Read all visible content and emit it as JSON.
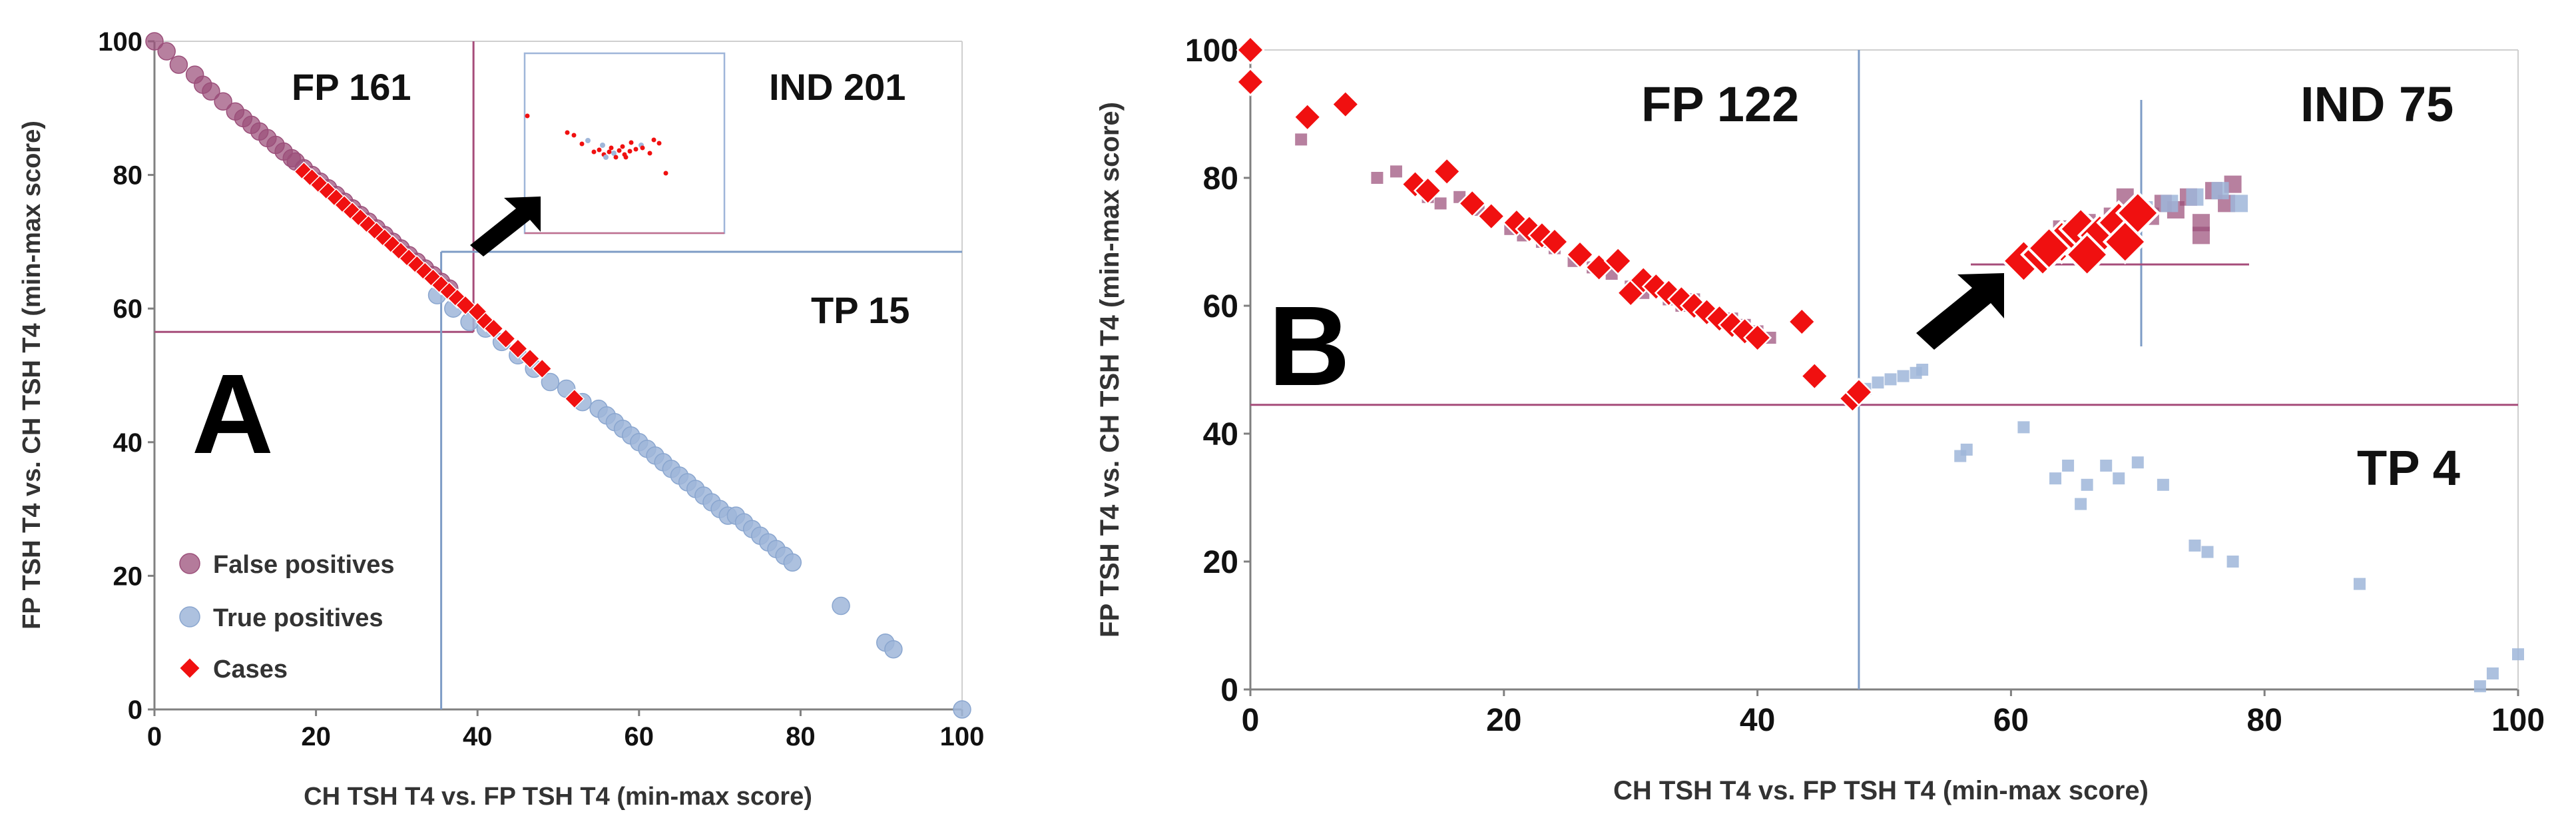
{
  "colors": {
    "fp": "#9b4f7a",
    "tp": "#9fb6d9",
    "case": "#f01010",
    "fp_line": "#a64d7a",
    "tp_line": "#7e9cc6",
    "axis": "#808080",
    "inset_box": "#9fb6d9",
    "inset_box_b": "#c07090"
  },
  "panels": {
    "a": {
      "label": "A",
      "fp_text": "FP 161",
      "ind_text": "IND 201",
      "tp_text": "TP  15"
    },
    "b": {
      "label": "B",
      "fp_text": "FP  122",
      "ind_text": "IND 75",
      "tp_text": "TP  4"
    }
  },
  "legend": {
    "fp": "False positives",
    "tp": "True positives",
    "cases": "Cases"
  },
  "chart_data": [
    {
      "type": "scatter",
      "title": "",
      "xlabel": "CH TSH T4 vs. FP TSH T4 (min-max score)",
      "ylabel": "FP TSH T4 vs. CH TSH T4 (min-max score)",
      "xlim": [
        0,
        100
      ],
      "ylim": [
        0,
        100
      ],
      "xticks": [
        0,
        20,
        40,
        60,
        80,
        100
      ],
      "yticks": [
        0,
        20,
        40,
        60,
        80,
        100
      ],
      "thresholds": {
        "fp_x": 39.5,
        "fp_y": 56.5,
        "tp_x": 35.5,
        "tp_y": 68.5
      },
      "series": [
        {
          "name": "False positives",
          "marker": "circle",
          "x": [
            0,
            1.5,
            3,
            5,
            6,
            7,
            8.5,
            10,
            11,
            12,
            13,
            14,
            15,
            16,
            17,
            17.5,
            18.5,
            19.5,
            20.5,
            21.5,
            22.5,
            23.5,
            24.5,
            25.5,
            26.5,
            27.5,
            28.5,
            29.5,
            30.5,
            31.5,
            32.5,
            33.5,
            34.5,
            35.5,
            36.5
          ],
          "y": [
            100,
            98.5,
            96.5,
            95,
            93.5,
            92.5,
            91,
            89.5,
            88.5,
            87.5,
            86.5,
            85.5,
            84.5,
            83.5,
            82.5,
            82,
            81,
            80,
            79,
            78,
            77,
            76,
            75,
            74,
            73,
            72,
            71,
            70,
            69,
            68,
            67,
            66,
            65,
            64,
            63
          ]
        },
        {
          "name": "True positives",
          "marker": "circle",
          "x": [
            35,
            37,
            39,
            41,
            43,
            45,
            47,
            49,
            51,
            53,
            55,
            56,
            57,
            58,
            59,
            60,
            61,
            62,
            63,
            64,
            65,
            66,
            67,
            68,
            69,
            70,
            71,
            72,
            73,
            74,
            75,
            76,
            77,
            78,
            79,
            85,
            90.5,
            91.5,
            100
          ],
          "y": [
            62,
            60,
            58,
            57,
            55,
            53,
            51,
            49,
            48,
            46,
            45,
            44,
            43,
            42,
            41,
            40,
            39,
            38,
            37,
            36,
            35,
            34,
            33,
            32,
            31,
            30,
            29,
            29,
            28,
            27,
            26,
            25,
            24,
            23,
            22,
            15.5,
            10,
            9,
            0
          ]
        },
        {
          "name": "Cases",
          "marker": "diamond",
          "x": [
            18.5,
            19.5,
            20.5,
            21.5,
            22.5,
            23.5,
            24.5,
            25.5,
            26.5,
            27.5,
            28.5,
            29.5,
            30.5,
            31.5,
            32.5,
            33.5,
            34.5,
            35.5,
            36.5,
            37.5,
            38.5,
            40,
            41,
            42,
            43.5,
            45,
            46.5,
            48,
            52
          ],
          "y": [
            80.5,
            79.5,
            78.5,
            77.5,
            76.5,
            75.5,
            74.5,
            73.5,
            72.5,
            71.5,
            70.5,
            69.5,
            68.5,
            67.5,
            66.5,
            65.5,
            64.5,
            63.5,
            62.5,
            61.5,
            60.5,
            59.5,
            58,
            57,
            55.5,
            54,
            52.5,
            51,
            46.5
          ]
        }
      ]
    },
    {
      "type": "scatter",
      "title": "",
      "xlabel": "CH TSH T4 vs. FP TSH T4 (min-max score)",
      "ylabel": "FP TSH T4 vs. CH TSH T4 (min-max score)",
      "xlim": [
        0,
        100
      ],
      "ylim": [
        0,
        100
      ],
      "xticks": [
        0,
        20,
        40,
        60,
        80,
        100
      ],
      "yticks": [
        0,
        20,
        40,
        60,
        80,
        100
      ],
      "thresholds": {
        "x": 48,
        "y": 44.5
      },
      "series": [
        {
          "name": "False positives",
          "marker": "square",
          "x": [
            4,
            10,
            11.5,
            13,
            14,
            15,
            16.5,
            18,
            19,
            20.5,
            21.5,
            23,
            24,
            25.5,
            27,
            28.5,
            30,
            31,
            32,
            33,
            34,
            35,
            36,
            37,
            38,
            39,
            40,
            41,
            64,
            66,
            68,
            70,
            72,
            74,
            76,
            77.5,
            65,
            67,
            69,
            71,
            73,
            75,
            77,
            63,
            69,
            75
          ],
          "y": [
            86,
            80,
            81,
            79,
            77,
            76,
            77,
            75,
            74,
            72,
            71,
            70,
            69,
            67,
            66,
            65,
            63,
            62,
            63,
            61,
            60,
            61,
            59,
            58,
            58,
            57,
            56,
            55,
            72,
            73,
            74,
            75,
            76,
            77,
            78,
            79,
            70,
            71,
            72,
            74,
            75,
            73,
            76,
            69,
            77,
            71
          ]
        },
        {
          "name": "True positives",
          "marker": "square",
          "x": [
            48.5,
            49.5,
            50.5,
            51.5,
            52.5,
            53,
            56,
            56.5,
            61,
            63.5,
            64.5,
            65.5,
            66,
            67.5,
            68.5,
            70,
            72,
            74.5,
            75.5,
            77.5,
            87.5,
            97,
            98,
            100,
            70.5,
            72.5,
            74.5,
            76.5,
            78
          ],
          "y": [
            47,
            48,
            48.5,
            49,
            49.5,
            50,
            36.5,
            37.5,
            41,
            33,
            35,
            29,
            32,
            35,
            33,
            35.5,
            32,
            22.5,
            21.5,
            20,
            16.5,
            0.5,
            2.5,
            5.5,
            75,
            76,
            77,
            78,
            76
          ]
        },
        {
          "name": "Cases",
          "marker": "diamond",
          "x": [
            0,
            0,
            4.5,
            7.5,
            13,
            14,
            15.5,
            17.5,
            19,
            21,
            22,
            23,
            24,
            26,
            27.5,
            29,
            30,
            31,
            32,
            33,
            34,
            35,
            36,
            37,
            38,
            39,
            40,
            43.5,
            44.5,
            47.5,
            48,
            61,
            62.5,
            64,
            65.5,
            67,
            68.5,
            70,
            63,
            66,
            69
          ],
          "y": [
            100,
            95,
            89.5,
            91.5,
            79,
            78,
            81,
            76,
            74,
            73,
            72,
            71,
            70,
            68,
            66,
            67,
            62,
            64,
            63,
            62,
            61,
            60,
            59,
            58,
            57,
            56,
            55,
            57.5,
            49,
            45.5,
            46.5,
            67,
            68,
            70,
            72,
            71,
            73,
            74.5,
            69,
            68,
            70
          ]
        }
      ]
    }
  ]
}
